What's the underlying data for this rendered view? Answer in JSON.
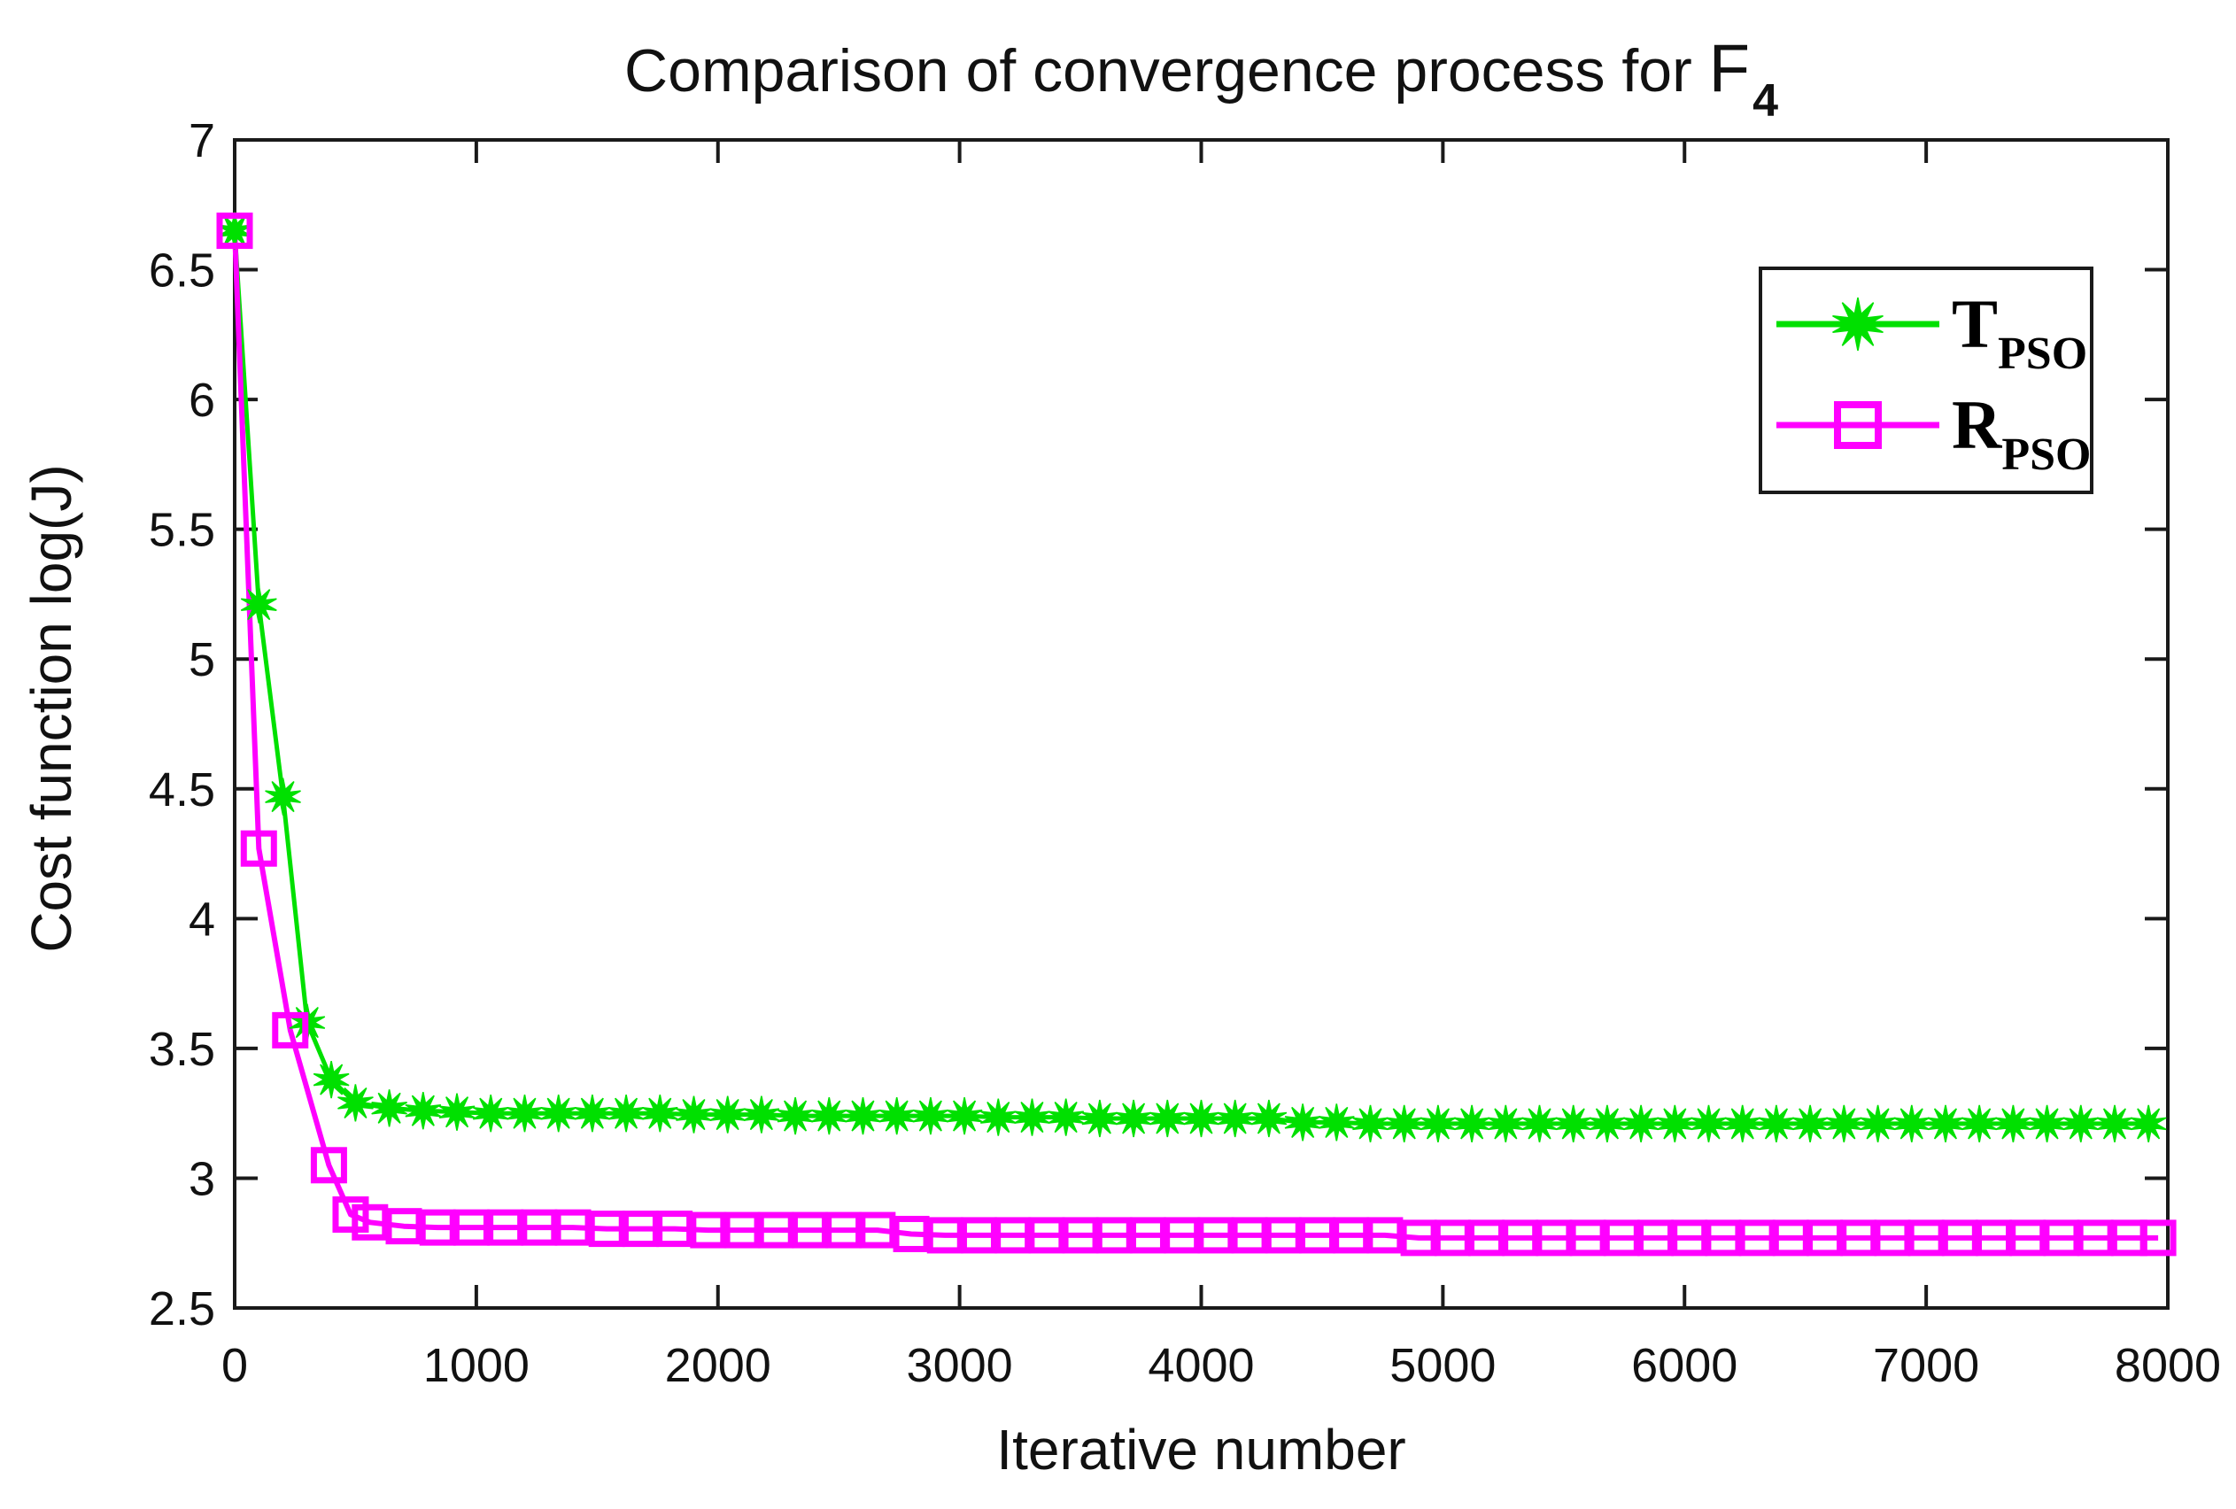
{
  "title": {
    "prefix": "Comparison of convergence process for ",
    "symbol": "F",
    "subscript": "4"
  },
  "axes": {
    "xlabel": "Iterative number",
    "ylabel": "Cost function log(J)"
  },
  "colors": {
    "tpso_green": "#00e000",
    "rpso_magenta": "#ff00ff",
    "axis_black": "#1a1a1a"
  },
  "chart_data": {
    "type": "line",
    "title": "Comparison of convergence process for F_4",
    "xlabel": "Iterative number",
    "ylabel": "Cost function log(J)",
    "xlim": [
      0,
      8000
    ],
    "ylim": [
      2.5,
      7
    ],
    "x_ticks": [
      0,
      1000,
      2000,
      3000,
      4000,
      5000,
      6000,
      7000,
      8000
    ],
    "y_ticks": [
      2.5,
      3,
      3.5,
      4,
      4.5,
      5,
      5.5,
      6,
      6.5,
      7
    ],
    "grid": false,
    "legend_position": "upper right",
    "series": [
      {
        "name": "T_PSO",
        "label_main": "T",
        "label_sub": "PSO",
        "color": "#00e000",
        "marker": "star",
        "points": [
          [
            0,
            6.65
          ],
          [
            100,
            5.21
          ],
          [
            200,
            4.47
          ],
          [
            300,
            3.6
          ],
          [
            400,
            3.38
          ],
          [
            500,
            3.29
          ],
          [
            640,
            3.27
          ],
          [
            780,
            3.26
          ],
          [
            920,
            3.255
          ],
          [
            1060,
            3.25
          ],
          [
            1200,
            3.25
          ],
          [
            1340,
            3.25
          ],
          [
            1480,
            3.25
          ],
          [
            1620,
            3.25
          ],
          [
            1760,
            3.25
          ],
          [
            1900,
            3.245
          ],
          [
            2040,
            3.245
          ],
          [
            2180,
            3.245
          ],
          [
            2320,
            3.24
          ],
          [
            2460,
            3.24
          ],
          [
            2600,
            3.24
          ],
          [
            2740,
            3.24
          ],
          [
            2880,
            3.24
          ],
          [
            3020,
            3.24
          ],
          [
            3160,
            3.235
          ],
          [
            3300,
            3.235
          ],
          [
            3440,
            3.235
          ],
          [
            3580,
            3.23
          ],
          [
            3720,
            3.23
          ],
          [
            3860,
            3.23
          ],
          [
            4000,
            3.23
          ],
          [
            4140,
            3.23
          ],
          [
            4280,
            3.23
          ],
          [
            4420,
            3.215
          ],
          [
            4560,
            3.215
          ],
          [
            4700,
            3.21
          ],
          [
            4840,
            3.21
          ],
          [
            4980,
            3.21
          ],
          [
            5120,
            3.21
          ],
          [
            5260,
            3.21
          ],
          [
            5400,
            3.21
          ],
          [
            5540,
            3.21
          ],
          [
            5680,
            3.21
          ],
          [
            5820,
            3.21
          ],
          [
            5960,
            3.21
          ],
          [
            6100,
            3.21
          ],
          [
            6240,
            3.21
          ],
          [
            6380,
            3.21
          ],
          [
            6520,
            3.21
          ],
          [
            6660,
            3.21
          ],
          [
            6800,
            3.21
          ],
          [
            6940,
            3.21
          ],
          [
            7080,
            3.21
          ],
          [
            7220,
            3.21
          ],
          [
            7360,
            3.21
          ],
          [
            7500,
            3.21
          ],
          [
            7640,
            3.21
          ],
          [
            7780,
            3.21
          ],
          [
            7920,
            3.21
          ]
        ]
      },
      {
        "name": "R_PSO",
        "label_main": "R",
        "label_sub": "PSO",
        "color": "#ff00ff",
        "marker": "square",
        "points": [
          [
            0,
            6.65
          ],
          [
            100,
            4.27
          ],
          [
            230,
            3.57
          ],
          [
            390,
            3.05
          ],
          [
            480,
            2.86
          ],
          [
            560,
            2.83
          ],
          [
            700,
            2.815
          ],
          [
            840,
            2.81
          ],
          [
            980,
            2.81
          ],
          [
            1120,
            2.81
          ],
          [
            1260,
            2.81
          ],
          [
            1400,
            2.81
          ],
          [
            1540,
            2.805
          ],
          [
            1680,
            2.805
          ],
          [
            1820,
            2.805
          ],
          [
            1960,
            2.8
          ],
          [
            2100,
            2.8
          ],
          [
            2240,
            2.8
          ],
          [
            2380,
            2.8
          ],
          [
            2520,
            2.8
          ],
          [
            2660,
            2.8
          ],
          [
            2800,
            2.785
          ],
          [
            2940,
            2.78
          ],
          [
            3080,
            2.78
          ],
          [
            3220,
            2.78
          ],
          [
            3360,
            2.78
          ],
          [
            3500,
            2.78
          ],
          [
            3640,
            2.78
          ],
          [
            3780,
            2.78
          ],
          [
            3920,
            2.78
          ],
          [
            4060,
            2.78
          ],
          [
            4200,
            2.78
          ],
          [
            4340,
            2.78
          ],
          [
            4480,
            2.78
          ],
          [
            4620,
            2.78
          ],
          [
            4760,
            2.78
          ],
          [
            4900,
            2.77
          ],
          [
            5040,
            2.77
          ],
          [
            5180,
            2.77
          ],
          [
            5320,
            2.77
          ],
          [
            5460,
            2.77
          ],
          [
            5600,
            2.77
          ],
          [
            5740,
            2.77
          ],
          [
            5880,
            2.77
          ],
          [
            6020,
            2.77
          ],
          [
            6160,
            2.77
          ],
          [
            6300,
            2.77
          ],
          [
            6440,
            2.77
          ],
          [
            6580,
            2.77
          ],
          [
            6720,
            2.77
          ],
          [
            6860,
            2.77
          ],
          [
            7000,
            2.77
          ],
          [
            7140,
            2.77
          ],
          [
            7280,
            2.77
          ],
          [
            7420,
            2.77
          ],
          [
            7560,
            2.77
          ],
          [
            7700,
            2.77
          ],
          [
            7840,
            2.77
          ],
          [
            7960,
            2.77
          ]
        ]
      }
    ]
  }
}
